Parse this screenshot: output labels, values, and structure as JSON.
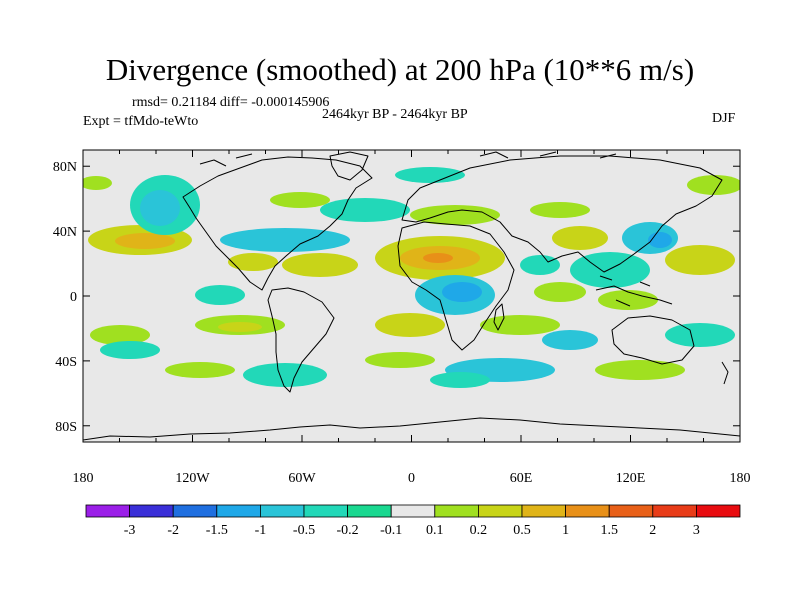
{
  "title": "Divergence (smoothed) at 200 hPa (10**6 m/s)",
  "stats": "rmsd= 0.21184 diff= -0.000145906",
  "experiment": "Expt = tfMdo-teWto",
  "period": "2464kyr BP - 2464kyr BP",
  "season": "DJF",
  "map": {
    "lat_ticks": [
      {
        "value": 80,
        "label": "80N"
      },
      {
        "value": 40,
        "label": "40N"
      },
      {
        "value": 0,
        "label": "0"
      },
      {
        "value": -40,
        "label": "40S"
      },
      {
        "value": -80,
        "label": "80S"
      }
    ],
    "lon_ticks": [
      {
        "value": -180,
        "label": "180"
      },
      {
        "value": -120,
        "label": "120W"
      },
      {
        "value": -60,
        "label": "60W"
      },
      {
        "value": 0,
        "label": "0"
      },
      {
        "value": 60,
        "label": "60E"
      },
      {
        "value": 120,
        "label": "120E"
      },
      {
        "value": 180,
        "label": "180"
      }
    ],
    "lon_range": [
      -180,
      180
    ],
    "lat_range": [
      -90,
      90
    ],
    "background_color": "#e8e8e8"
  },
  "colorbar": {
    "labels": [
      "-3",
      "-2",
      "-1.5",
      "-1",
      "-0.5",
      "-0.2",
      "-0.1",
      "0.1",
      "0.2",
      "0.5",
      "1",
      "1.5",
      "2",
      "3"
    ],
    "colors": [
      "#9b1fe8",
      "#3a2fd8",
      "#1f6fe0",
      "#1fa8e8",
      "#2ac4d8",
      "#22d8b8",
      "#1ad890",
      "#e8e8e8",
      "#a0e020",
      "#c8d418",
      "#e0b418",
      "#e89018",
      "#e86018",
      "#e83c18",
      "#e80c10"
    ]
  }
}
